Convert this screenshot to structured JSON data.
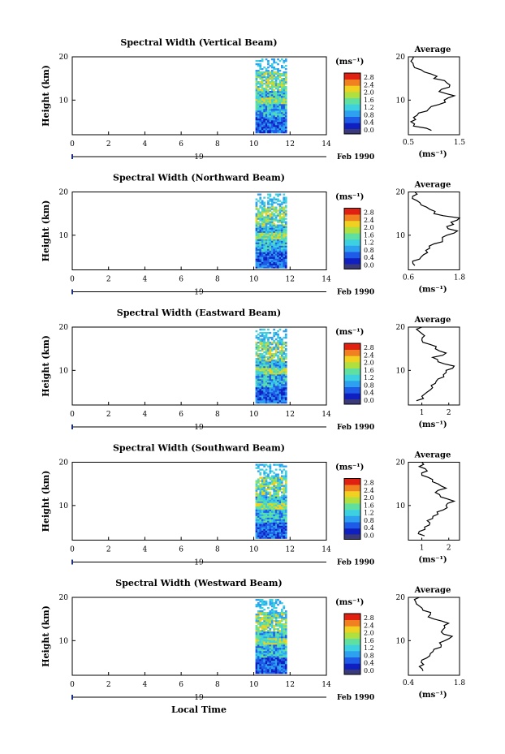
{
  "figure": {
    "date_label": "Feb 1990",
    "day_label": "19",
    "xlabel": "Local Time",
    "average_title": "Average",
    "colorbar_unit": "(ms⁻¹)",
    "colorbar_ticks": [
      "0.0",
      "0.4",
      "0.8",
      "1.2",
      "1.6",
      "2.0",
      "2.4",
      "2.8"
    ],
    "colors": {
      "bar_bottom": "#3a3a7a",
      "scale": [
        "#1020c0",
        "#1e5ce8",
        "#2ea0f0",
        "#3cd0e0",
        "#60e0a0",
        "#b0e040",
        "#f0d020",
        "#f08020",
        "#e02010"
      ]
    }
  },
  "chart_data": [
    {
      "type": "heatmap",
      "title": "Spectral Width (Vertical Beam)",
      "ylabel": "Height (km)",
      "xlim": [
        0,
        14
      ],
      "ylim": [
        2,
        20
      ],
      "x_ticks": [
        "0",
        "2",
        "4",
        "6",
        "8",
        "10",
        "12",
        "14"
      ],
      "y_ticks": [
        "10",
        "20"
      ],
      "data_x_range": [
        10,
        12
      ],
      "clim": [
        0,
        2.8
      ],
      "seed": 11,
      "profile": {
        "xlim": [
          0.5,
          1.5
        ],
        "x_ticks": [
          "0.5",
          "1.5"
        ],
        "xlabel": "(ms⁻¹)",
        "points": [
          [
            0.95,
            3
          ],
          [
            0.6,
            4
          ],
          [
            0.55,
            5
          ],
          [
            0.6,
            6
          ],
          [
            0.7,
            7
          ],
          [
            0.9,
            8
          ],
          [
            1.1,
            9
          ],
          [
            1.2,
            10
          ],
          [
            1.4,
            11
          ],
          [
            1.1,
            12
          ],
          [
            1.3,
            13
          ],
          [
            1.25,
            14
          ],
          [
            1.0,
            15
          ],
          [
            0.95,
            16
          ],
          [
            0.75,
            17
          ],
          [
            0.6,
            18
          ],
          [
            0.55,
            19
          ],
          [
            0.6,
            20
          ]
        ]
      }
    },
    {
      "type": "heatmap",
      "title": "Spectral Width (Northward Beam)",
      "ylabel": "Height (km)",
      "xlim": [
        0,
        14
      ],
      "ylim": [
        2,
        20
      ],
      "x_ticks": [
        "0",
        "2",
        "4",
        "6",
        "8",
        "10",
        "12",
        "14"
      ],
      "y_ticks": [
        "10",
        "20"
      ],
      "data_x_range": [
        10,
        12
      ],
      "clim": [
        0,
        2.8
      ],
      "seed": 23,
      "profile": {
        "xlim": [
          0.6,
          1.8
        ],
        "x_ticks": [
          "0.6",
          "1.8"
        ],
        "xlabel": "(ms⁻¹)",
        "points": [
          [
            0.75,
            3
          ],
          [
            0.7,
            4
          ],
          [
            0.9,
            5
          ],
          [
            1.05,
            6
          ],
          [
            1.1,
            7
          ],
          [
            1.2,
            8
          ],
          [
            1.4,
            9
          ],
          [
            1.5,
            10
          ],
          [
            1.75,
            11
          ],
          [
            1.5,
            12
          ],
          [
            1.6,
            13
          ],
          [
            1.8,
            14
          ],
          [
            1.2,
            15
          ],
          [
            1.1,
            16
          ],
          [
            0.9,
            17
          ],
          [
            0.8,
            18
          ],
          [
            0.7,
            19
          ],
          [
            0.75,
            20
          ]
        ]
      }
    },
    {
      "type": "heatmap",
      "title": "Spectral Width (Eastward Beam)",
      "ylabel": "Height (km)",
      "xlim": [
        0,
        14
      ],
      "ylim": [
        2,
        20
      ],
      "x_ticks": [
        "0",
        "2",
        "4",
        "6",
        "8",
        "10",
        "12",
        "14"
      ],
      "y_ticks": [
        "10",
        "20"
      ],
      "data_x_range": [
        10,
        12
      ],
      "clim": [
        0,
        2.8
      ],
      "seed": 37,
      "profile": {
        "xlim": [
          0.5,
          2.4
        ],
        "x_ticks": [
          "1",
          "2"
        ],
        "xlabel": "(ms⁻¹)",
        "points": [
          [
            0.8,
            3
          ],
          [
            1.0,
            4
          ],
          [
            1.2,
            5
          ],
          [
            1.4,
            6
          ],
          [
            1.5,
            7
          ],
          [
            1.6,
            8
          ],
          [
            1.8,
            9
          ],
          [
            1.9,
            10
          ],
          [
            2.2,
            11
          ],
          [
            1.6,
            12
          ],
          [
            1.4,
            13
          ],
          [
            1.9,
            14
          ],
          [
            1.5,
            15
          ],
          [
            1.3,
            16
          ],
          [
            1.0,
            17
          ],
          [
            1.1,
            18
          ],
          [
            0.9,
            19
          ],
          [
            1.0,
            20
          ]
        ]
      }
    },
    {
      "type": "heatmap",
      "title": "Spectral Width (Southward Beam)",
      "ylabel": "Height (km)",
      "xlim": [
        0,
        14
      ],
      "ylim": [
        2,
        20
      ],
      "x_ticks": [
        "0",
        "2",
        "4",
        "6",
        "8",
        "10",
        "12",
        "14"
      ],
      "y_ticks": [
        "10",
        "20"
      ],
      "data_x_range": [
        10,
        12
      ],
      "clim": [
        0,
        2.8
      ],
      "seed": 41,
      "profile": {
        "xlim": [
          0.5,
          2.4
        ],
        "x_ticks": [
          "1",
          "2"
        ],
        "xlabel": "(ms⁻¹)",
        "points": [
          [
            1.1,
            3
          ],
          [
            0.9,
            4
          ],
          [
            1.1,
            5
          ],
          [
            1.3,
            6
          ],
          [
            1.4,
            7
          ],
          [
            1.6,
            8
          ],
          [
            1.8,
            9
          ],
          [
            1.9,
            10
          ],
          [
            2.2,
            11
          ],
          [
            1.7,
            12
          ],
          [
            1.5,
            13
          ],
          [
            1.9,
            14
          ],
          [
            1.6,
            15
          ],
          [
            1.4,
            16
          ],
          [
            1.0,
            17
          ],
          [
            1.2,
            18
          ],
          [
            0.9,
            19
          ],
          [
            1.0,
            20
          ]
        ]
      }
    },
    {
      "type": "heatmap",
      "title": "Spectral Width (Westward Beam)",
      "ylabel": "Height (km)",
      "xlim": [
        0,
        14
      ],
      "ylim": [
        2,
        20
      ],
      "x_ticks": [
        "0",
        "2",
        "4",
        "6",
        "8",
        "10",
        "12",
        "14"
      ],
      "y_ticks": [
        "10",
        "20"
      ],
      "data_x_range": [
        10,
        12
      ],
      "clim": [
        0,
        2.8
      ],
      "seed": 53,
      "profile": {
        "xlim": [
          0.4,
          1.8
        ],
        "x_ticks": [
          "0.4",
          "1.8"
        ],
        "xlabel": "(ms⁻¹)",
        "points": [
          [
            0.8,
            3
          ],
          [
            0.7,
            4
          ],
          [
            0.75,
            5
          ],
          [
            0.9,
            6
          ],
          [
            1.0,
            7
          ],
          [
            1.1,
            8
          ],
          [
            1.3,
            9
          ],
          [
            1.4,
            10
          ],
          [
            1.6,
            11
          ],
          [
            1.3,
            12
          ],
          [
            1.4,
            13
          ],
          [
            1.5,
            14
          ],
          [
            1.1,
            15
          ],
          [
            1.0,
            16
          ],
          [
            0.8,
            17
          ],
          [
            0.7,
            18
          ],
          [
            0.6,
            19
          ],
          [
            0.7,
            20
          ]
        ]
      }
    }
  ]
}
